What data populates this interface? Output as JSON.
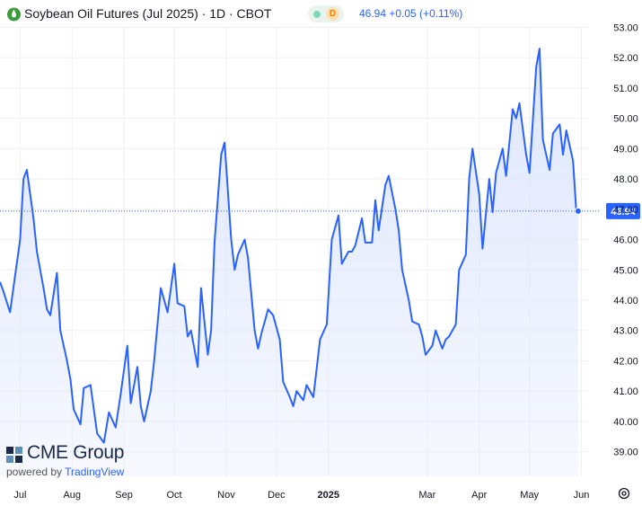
{
  "header": {
    "title": "Soybean Oil Futures (Jul 2025) · 1D · CBOT",
    "badge_letter": "D",
    "price_text": "46.94  +0.05 (+0.11%)",
    "icon": "oil-drop-icon"
  },
  "branding": {
    "logo_name": "CME Group",
    "powered_by": "powered by",
    "tradingview": "TradingView"
  },
  "colors": {
    "line": "#2962ff",
    "fill_top": "#dde6fb",
    "grid": "#eef0f3",
    "last_price_label_bg": "#2962ff"
  },
  "chart_data": {
    "type": "area",
    "title": "",
    "xlabel": "",
    "ylabel": "",
    "ylim": [
      38.5,
      53.3
    ],
    "y_ticks": [
      39,
      40,
      41,
      42,
      43,
      44,
      45,
      46,
      47,
      48,
      49,
      50,
      51,
      52,
      53
    ],
    "y_tick_labels": [
      "39.00",
      "40.00",
      "41.00",
      "42.00",
      "43.00",
      "44.00",
      "45.00",
      "46.00",
      "47.00",
      "48.00",
      "49.00",
      "50.00",
      "51.00",
      "52.00",
      "53.00"
    ],
    "x_ticks": [
      {
        "label": "Jul",
        "date": "2024-07-01"
      },
      {
        "label": "Aug",
        "date": "2024-08-01"
      },
      {
        "label": "Sep",
        "date": "2024-09-01"
      },
      {
        "label": "Oct",
        "date": "2024-10-01"
      },
      {
        "label": "Nov",
        "date": "2024-11-01"
      },
      {
        "label": "Dec",
        "date": "2024-12-01"
      },
      {
        "label": "2025",
        "date": "2025-01-01"
      },
      {
        "label": "Mar",
        "date": "2025-03-01"
      },
      {
        "label": "Apr",
        "date": "2025-04-01"
      },
      {
        "label": "May",
        "date": "2025-05-01"
      },
      {
        "label": "Jun",
        "date": "2025-06-01"
      }
    ],
    "last_price": 46.94,
    "last_price_label": "46.94",
    "grid": true,
    "series": [
      {
        "x": [
          "2024-06-19",
          "2024-06-21",
          "2024-06-25",
          "2024-06-27",
          "2024-07-01",
          "2024-07-03",
          "2024-07-05",
          "2024-07-09",
          "2024-07-11",
          "2024-07-15",
          "2024-07-17",
          "2024-07-19",
          "2024-07-23",
          "2024-07-25",
          "2024-07-29",
          "2024-07-31",
          "2024-08-02",
          "2024-08-06",
          "2024-08-08",
          "2024-08-12",
          "2024-08-16",
          "2024-08-20",
          "2024-08-23",
          "2024-08-27",
          "2024-08-30",
          "2024-09-03",
          "2024-09-05",
          "2024-09-09",
          "2024-09-11",
          "2024-09-13",
          "2024-09-17",
          "2024-09-19",
          "2024-09-23",
          "2024-09-27",
          "2024-10-01",
          "2024-10-03",
          "2024-10-07",
          "2024-10-09",
          "2024-10-11",
          "2024-10-15",
          "2024-10-17",
          "2024-10-21",
          "2024-10-23",
          "2024-10-25",
          "2024-10-29",
          "2024-10-31",
          "2024-11-04",
          "2024-11-06",
          "2024-11-08",
          "2024-11-12",
          "2024-11-14",
          "2024-11-18",
          "2024-11-20",
          "2024-11-22",
          "2024-11-26",
          "2024-11-29",
          "2024-12-03",
          "2024-12-05",
          "2024-12-09",
          "2024-12-11",
          "2024-12-13",
          "2024-12-17",
          "2024-12-19",
          "2024-12-23",
          "2024-12-27",
          "2024-12-31",
          "2025-01-03",
          "2025-01-07",
          "2025-01-09",
          "2025-01-13",
          "2025-01-15",
          "2025-01-17",
          "2025-01-21",
          "2025-01-23",
          "2025-01-27",
          "2025-01-29",
          "2025-01-31",
          "2025-02-04",
          "2025-02-06",
          "2025-02-10",
          "2025-02-12",
          "2025-02-14",
          "2025-02-18",
          "2025-02-20",
          "2025-02-24",
          "2025-02-26",
          "2025-02-28",
          "2025-03-04",
          "2025-03-06",
          "2025-03-10",
          "2025-03-12",
          "2025-03-14",
          "2025-03-18",
          "2025-03-20",
          "2025-03-24",
          "2025-03-26",
          "2025-03-28",
          "2025-04-01",
          "2025-04-03",
          "2025-04-07",
          "2025-04-09",
          "2025-04-11",
          "2025-04-15",
          "2025-04-17",
          "2025-04-21",
          "2025-04-23",
          "2025-04-25",
          "2025-04-29",
          "2025-05-01",
          "2025-05-05",
          "2025-05-07",
          "2025-05-09",
          "2025-05-13",
          "2025-05-15",
          "2025-05-19",
          "2025-05-21",
          "2025-05-23",
          "2025-05-27",
          "2025-05-29",
          "2025-05-30"
        ],
        "values": [
          44.6,
          44.3,
          43.6,
          44.4,
          46.0,
          48.0,
          48.3,
          46.7,
          45.6,
          44.4,
          43.7,
          43.5,
          44.9,
          43.0,
          42.0,
          41.4,
          40.4,
          39.9,
          41.1,
          41.2,
          39.6,
          39.3,
          40.3,
          39.8,
          40.9,
          42.5,
          40.6,
          41.8,
          40.5,
          40.0,
          41.0,
          42.0,
          44.4,
          43.6,
          45.2,
          43.9,
          43.8,
          42.8,
          43.0,
          41.8,
          44.4,
          42.2,
          43.0,
          45.9,
          48.8,
          49.2,
          46.0,
          45.0,
          45.5,
          46.0,
          45.4,
          43.0,
          42.4,
          42.9,
          43.7,
          43.5,
          42.7,
          41.3,
          40.8,
          40.5,
          41.0,
          40.7,
          41.2,
          40.8,
          42.7,
          43.2,
          46.0,
          46.8,
          45.2,
          45.6,
          45.6,
          45.8,
          46.7,
          45.9,
          45.9,
          47.3,
          46.3,
          47.8,
          48.1,
          47.0,
          46.3,
          45.0,
          44.0,
          43.3,
          43.2,
          42.8,
          42.2,
          42.5,
          43.0,
          42.4,
          42.7,
          42.8,
          43.2,
          45.0,
          45.5,
          48.0,
          49.0,
          47.5,
          45.7,
          48.0,
          46.9,
          48.2,
          49.0,
          48.1,
          50.3,
          50.0,
          50.5,
          48.8,
          48.2,
          51.7,
          52.3,
          49.3,
          48.3,
          49.5,
          49.8,
          48.8,
          49.6,
          48.6,
          46.9,
          46.94
        ]
      }
    ]
  }
}
